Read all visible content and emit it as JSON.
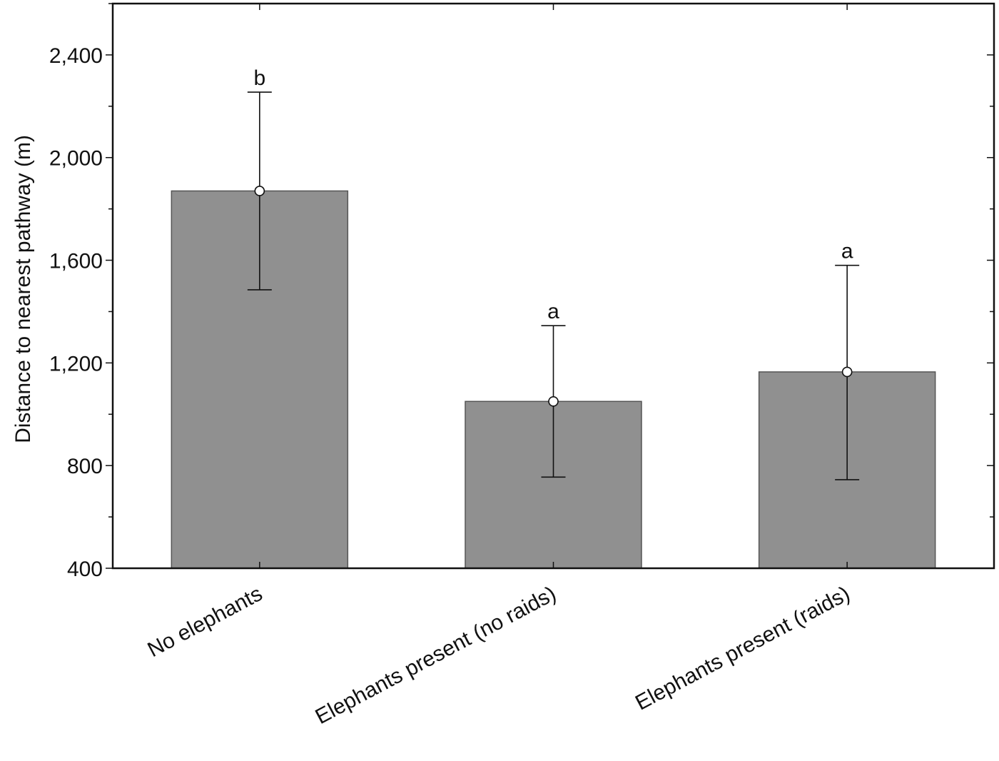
{
  "chart_data": {
    "type": "bar",
    "title": "",
    "xlabel": "",
    "ylabel": "Distance to nearest pathway (m)",
    "ylim": [
      400,
      2600
    ],
    "yticks": [
      400,
      800,
      1200,
      1600,
      2000,
      2400
    ],
    "ytick_labels": [
      "400",
      "800",
      "1,200",
      "1,600",
      "2,000",
      "2,400"
    ],
    "grid": false,
    "categories": [
      "No elephants",
      "Elephants present (no raids)",
      "Elephants present (raids)"
    ],
    "values": [
      1870,
      1050,
      1165
    ],
    "error_low": [
      1485,
      755,
      745
    ],
    "error_high": [
      2255,
      1345,
      1580
    ],
    "significance_labels": [
      "b",
      "a",
      "a"
    ],
    "colors": {
      "bar": "#909090",
      "bar_edge": "#555555",
      "axis": "#111111",
      "marker_fill": "#ffffff"
    }
  }
}
